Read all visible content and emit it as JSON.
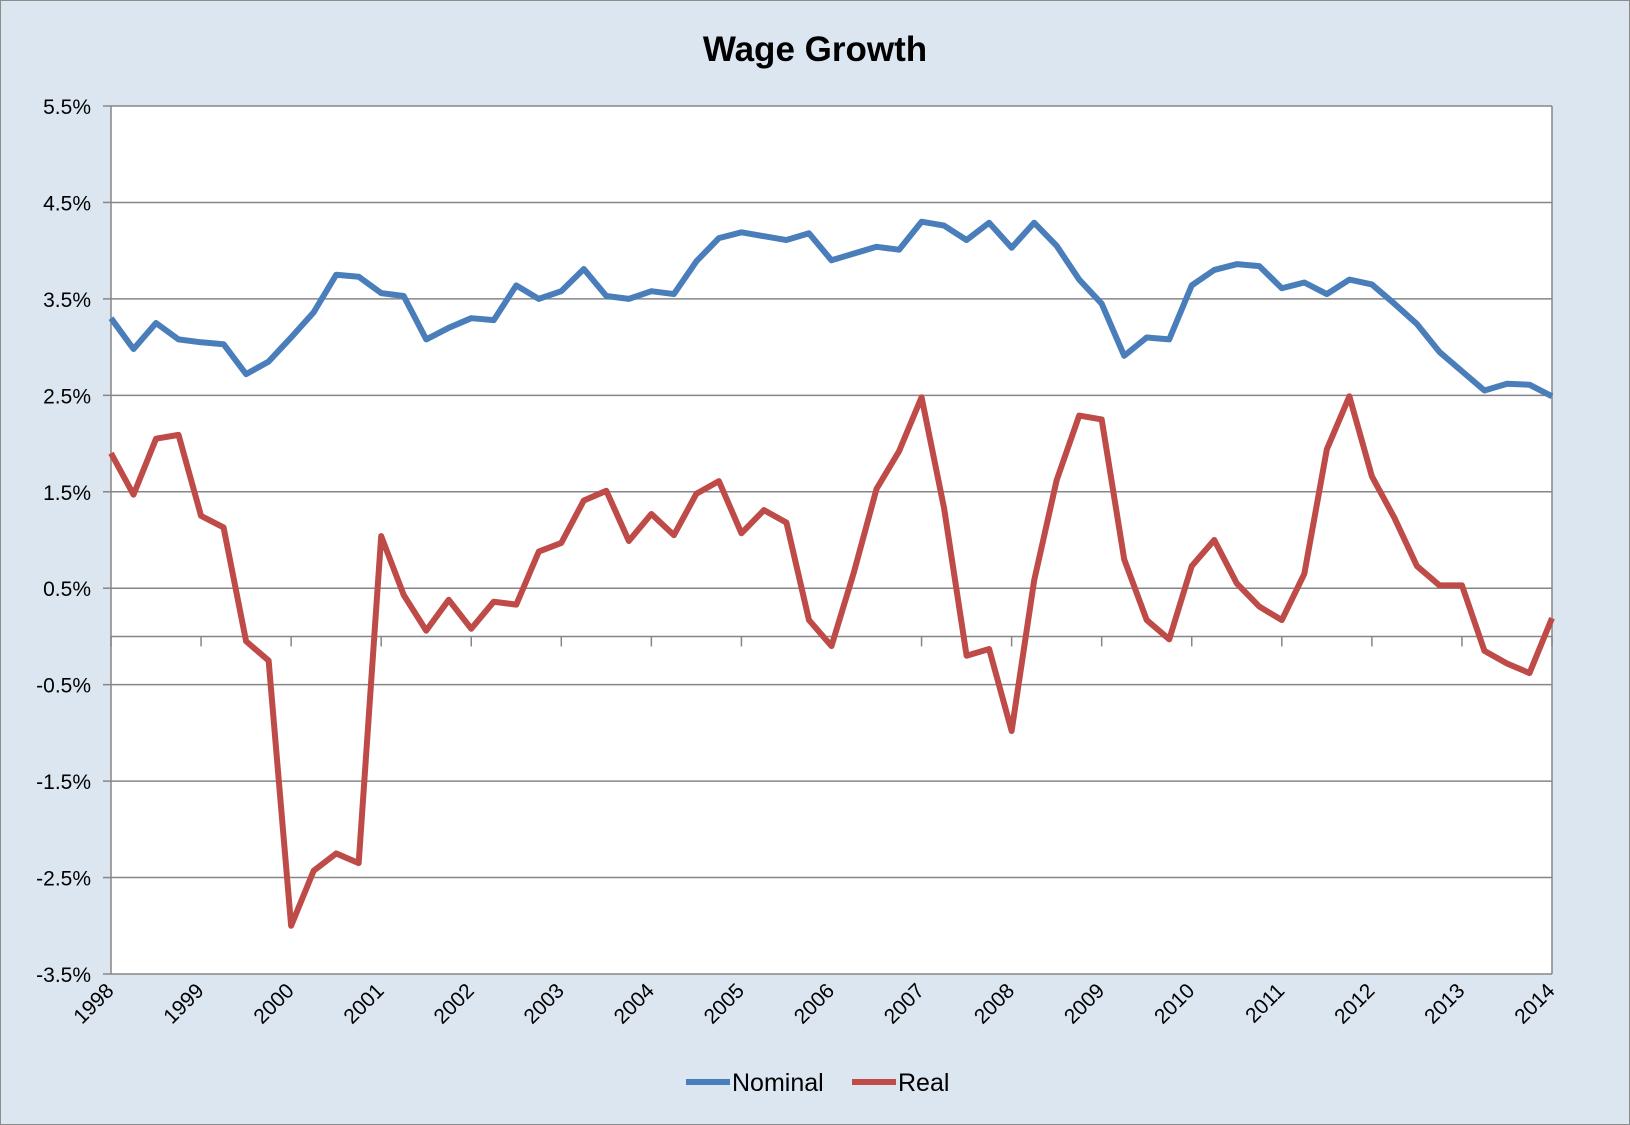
{
  "colors": {
    "background": "#dce6f1",
    "plot_area": "#ffffff",
    "gridline": "#868686",
    "nominal": "#4a7ebb",
    "real": "#be4b48"
  },
  "chart_data": {
    "type": "line",
    "title": "Wage Growth",
    "xlabel": "",
    "ylabel": "",
    "xlim": [
      1998,
      2014
    ],
    "ylim": [
      -3.5,
      5.5
    ],
    "y_ticks": [
      5.5,
      4.5,
      3.5,
      2.5,
      1.5,
      0.5,
      -0.5,
      -1.5,
      -2.5,
      -3.5
    ],
    "y_tick_labels": [
      "5.5%",
      "4.5%",
      "3.5%",
      "2.5%",
      "1.5%",
      "0.5%",
      "-0.5%",
      "-1.5%",
      "-2.5%",
      "-3.5%"
    ],
    "x_tick_labels": [
      "1998",
      "1999",
      "2000",
      "2001",
      "2002",
      "2003",
      "2004",
      "2005",
      "2006",
      "2007",
      "2008",
      "2009",
      "2010",
      "2011",
      "2012",
      "2013",
      "2014"
    ],
    "grid": true,
    "legend_position": "bottom",
    "x": [
      1998.0,
      1998.25,
      1998.5,
      1998.75,
      1999.0,
      1999.25,
      1999.5,
      1999.75,
      2000.0,
      2000.25,
      2000.5,
      2000.75,
      2001.0,
      2001.25,
      2001.5,
      2001.75,
      2002.0,
      2002.25,
      2002.5,
      2002.75,
      2003.0,
      2003.25,
      2003.5,
      2003.75,
      2004.0,
      2004.25,
      2004.5,
      2004.75,
      2005.0,
      2005.25,
      2005.5,
      2005.75,
      2006.0,
      2006.25,
      2006.5,
      2006.75,
      2007.0,
      2007.25,
      2007.5,
      2007.75,
      2008.0,
      2008.25,
      2008.5,
      2008.75,
      2009.0,
      2009.25,
      2009.5,
      2009.75,
      2010.0,
      2010.25,
      2010.5,
      2010.75,
      2011.0,
      2011.25,
      2011.5,
      2011.75,
      2012.0,
      2012.25,
      2012.5,
      2012.75,
      2013.0,
      2013.25,
      2013.5,
      2013.75,
      2014.0
    ],
    "series": [
      {
        "name": "Nominal",
        "values": [
          3.3,
          2.98,
          3.25,
          3.08,
          3.05,
          3.03,
          2.72,
          2.85,
          3.1,
          3.36,
          3.75,
          3.73,
          3.56,
          3.53,
          3.08,
          3.2,
          3.3,
          3.28,
          3.64,
          3.5,
          3.58,
          3.81,
          3.53,
          3.5,
          3.58,
          3.55,
          3.89,
          4.13,
          4.19,
          4.15,
          4.11,
          4.18,
          3.9,
          3.97,
          4.04,
          4.01,
          4.3,
          4.26,
          4.11,
          4.29,
          4.03,
          4.29,
          4.05,
          3.7,
          3.45,
          2.91,
          3.1,
          3.08,
          3.64,
          3.8,
          3.86,
          3.84,
          3.61,
          3.67,
          3.55,
          3.7,
          3.65,
          3.45,
          3.24,
          2.95,
          2.75,
          2.55,
          2.62,
          2.61,
          2.49
        ]
      },
      {
        "name": "Real",
        "values": [
          1.9,
          1.47,
          2.05,
          2.09,
          1.25,
          1.13,
          -0.05,
          -0.25,
          -3.0,
          -2.43,
          -2.25,
          -2.35,
          1.04,
          0.43,
          0.06,
          0.38,
          0.08,
          0.36,
          0.33,
          0.88,
          0.97,
          1.41,
          1.51,
          0.99,
          1.27,
          1.05,
          1.48,
          1.61,
          1.07,
          1.31,
          1.18,
          0.17,
          -0.1,
          0.67,
          1.53,
          1.92,
          2.48,
          1.33,
          -0.2,
          -0.13,
          -0.98,
          0.58,
          1.62,
          2.29,
          2.25,
          0.8,
          0.17,
          -0.03,
          0.73,
          1.0,
          0.55,
          0.31,
          0.17,
          0.65,
          1.94,
          2.49,
          1.66,
          1.23,
          0.73,
          0.53,
          0.53,
          -0.15,
          -0.28,
          -0.38,
          0.19
        ]
      }
    ]
  }
}
